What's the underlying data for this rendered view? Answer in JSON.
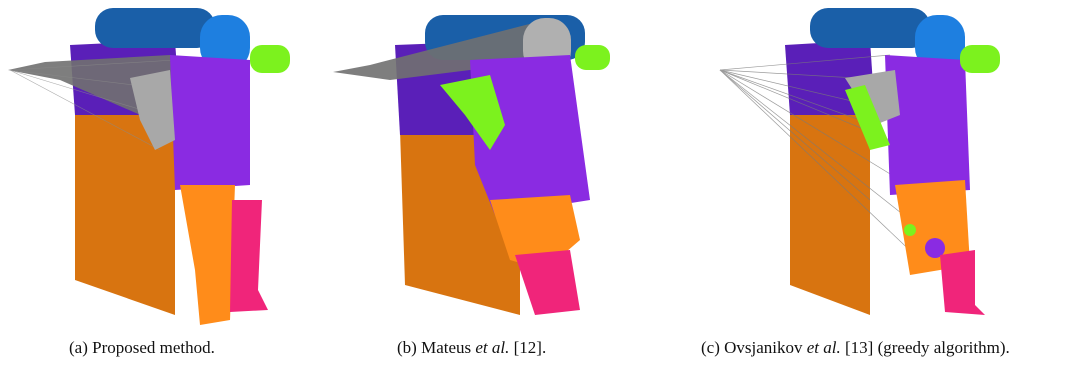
{
  "figure": {
    "panels": [
      {
        "id": "a",
        "caption_prefix": "(a) Proposed method.",
        "caption_italic": "",
        "caption_suffix": ""
      },
      {
        "id": "b",
        "caption_prefix": "(b) Mateus ",
        "caption_italic": "et al.",
        "caption_suffix": " [12]."
      },
      {
        "id": "c",
        "caption_prefix": "(c) Ovsjanikov ",
        "caption_italic": "et al.",
        "caption_suffix": " [13] (greedy algorithm)."
      }
    ],
    "colors": {
      "head": "#1e7fe0",
      "head_back": "#1a5fa8",
      "torso": "#8a2be2",
      "torso_back": "#5a1fb8",
      "arm_green": "#7cf21e",
      "arm_gray": "#a8a8a8",
      "leg_orange": "#ff8c1a",
      "leg_orange_back": "#d87410",
      "leg_pink": "#f0257a",
      "correspondence_lines": "#707070"
    }
  }
}
